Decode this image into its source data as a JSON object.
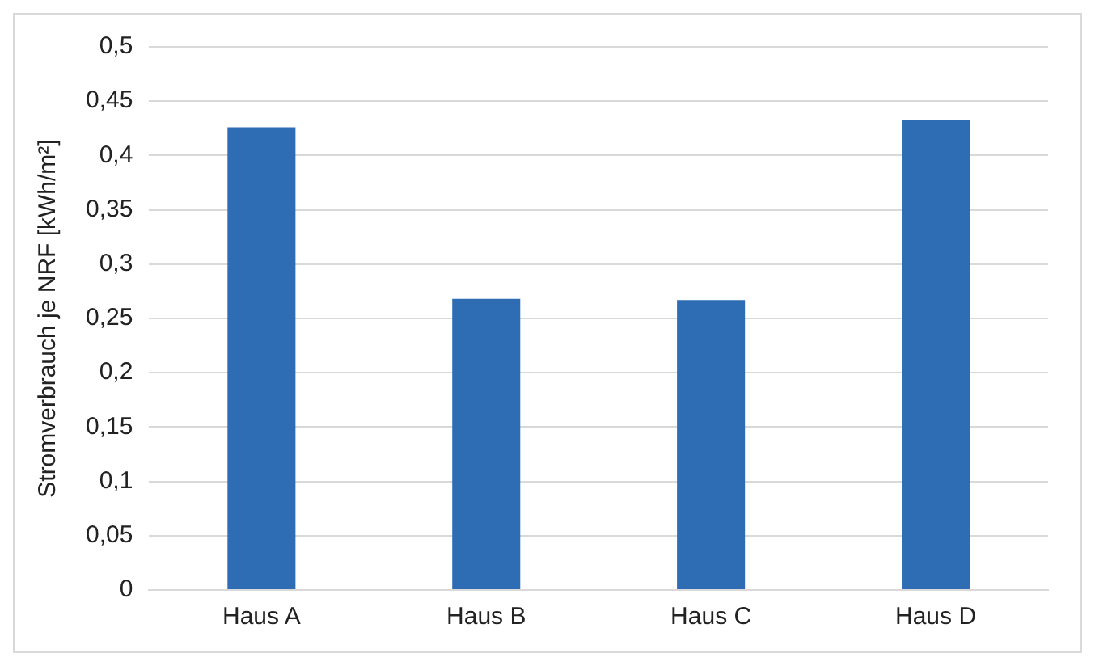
{
  "chart_data": {
    "type": "bar",
    "ylabel": "Stromverbrauch je NRF [kWh/m²]",
    "categories": [
      "Haus A",
      "Haus B",
      "Haus C",
      "Haus D"
    ],
    "values": [
      0.426,
      0.268,
      0.267,
      0.433
    ],
    "color": "#2e6db4",
    "ylim": [
      0,
      0.5
    ],
    "yticks": [
      0,
      {
        "value": 0.05,
        "label": "0,05"
      },
      {
        "value": 0.1,
        "label": "0,1"
      },
      {
        "value": 0.15,
        "label": "0,15"
      },
      {
        "value": 0.2,
        "label": "0,2"
      },
      {
        "value": 0.25,
        "label": "0,25"
      },
      {
        "value": 0.3,
        "label": "0,3"
      },
      {
        "value": 0.35,
        "label": "0,35"
      },
      {
        "value": 0.4,
        "label": "0,4"
      },
      {
        "value": 0.45,
        "label": "0,45"
      },
      {
        "value": 0.5,
        "label": "0,5"
      }
    ],
    "grid": "y",
    "legend": false
  }
}
